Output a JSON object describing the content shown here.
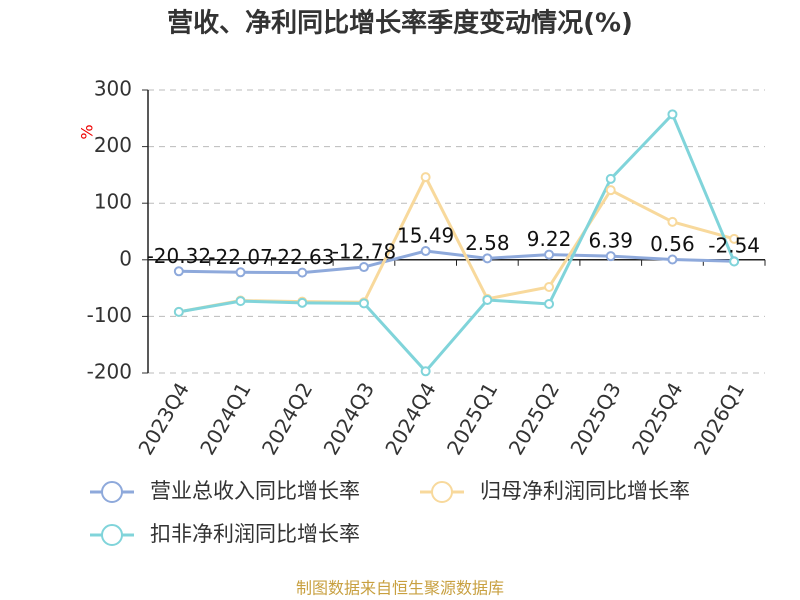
{
  "chart_data": {
    "type": "line",
    "title": "营收、净利同比增长率季度变动情况(%)",
    "y_axis_label": "%",
    "categories": [
      "2023Q4",
      "2024Q1",
      "2024Q2",
      "2024Q3",
      "2024Q4",
      "2025Q1",
      "2025Q2",
      "2025Q3",
      "2025Q4",
      "2026Q1"
    ],
    "series": [
      {
        "name": "营业总收入同比增长率",
        "color": "#8ea9db",
        "values": [
          -20.32,
          -22.07,
          -22.63,
          -12.78,
          15.49,
          2.58,
          9.22,
          6.39,
          0.56,
          -2.54
        ]
      },
      {
        "name": "归母净利润同比增长率",
        "color": "#f8d99c",
        "values": [
          -92,
          -72,
          -74,
          -75,
          146,
          -69,
          -48,
          123,
          67,
          37
        ]
      },
      {
        "name": "扣非净利润同比增长率",
        "color": "#80d4da",
        "values": [
          -92,
          -73,
          -76,
          -77,
          -197,
          -71,
          -78,
          143,
          257,
          -3
        ]
      }
    ],
    "ylim": [
      -200,
      300
    ],
    "yticks": [
      -200,
      -100,
      0,
      100,
      200,
      300
    ],
    "grid": true,
    "source": "制图数据来自恒生聚源数据库"
  }
}
